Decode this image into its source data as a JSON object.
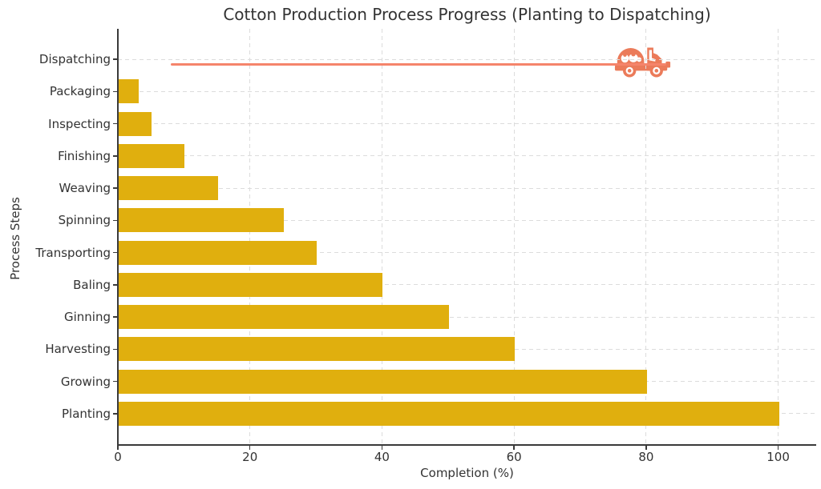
{
  "chart_data": {
    "type": "bar",
    "orientation": "horizontal",
    "title": "Cotton Production Process Progress (Planting to Dispatching)",
    "xlabel": "Completion (%)",
    "ylabel": "Process Steps",
    "category_order": "top-to-bottom",
    "categories": [
      "Dispatching",
      "Packaging",
      "Inspecting",
      "Finishing",
      "Weaving",
      "Spinning",
      "Transporting",
      "Baling",
      "Ginning",
      "Harvesting",
      "Growing",
      "Planting"
    ],
    "values": [
      null,
      3,
      5,
      10,
      15,
      25,
      30,
      40,
      50,
      60,
      80,
      100
    ],
    "x_ticks": [
      0,
      20,
      40,
      60,
      80,
      100
    ],
    "xlim": [
      0,
      105.8
    ],
    "grid": "dashed, both axes",
    "legend": "none",
    "bar_color": "#E0AF0E",
    "dispatching_annotation": {
      "note": "Dispatching row drawn as a progress line ending in a truck icon instead of a bar",
      "line_from": 8,
      "line_to": 83,
      "line_color": "#F5846B",
      "icon": "truck-icon",
      "icon_color": "#EB7B5A"
    },
    "style": {
      "spine_color": "#3a3a3a",
      "grid_color": "#dcdcdc",
      "text_color": "#333333",
      "background": "#ffffff"
    }
  }
}
